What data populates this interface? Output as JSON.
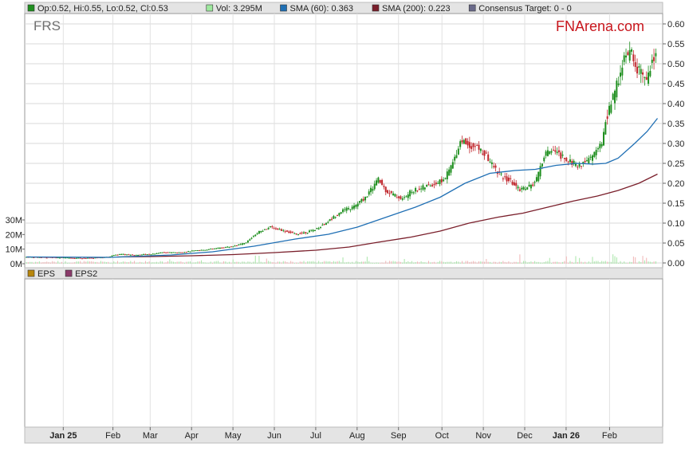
{
  "ticker": "FRS",
  "brand": "FNArena.com",
  "legend_top": [
    {
      "text": "Op:0.52, Hi:0.55, Lo:0.52, Cl:0.53",
      "color": "#1f8f1f"
    },
    {
      "text": "Vol: 3.295M",
      "color": "#9ee89e"
    },
    {
      "text": "SMA (60): 0.363",
      "color": "#1f6fb4"
    },
    {
      "text": "SMA (200): 0.223",
      "color": "#7a1f2b"
    },
    {
      "text": "Consensus Target: 0 - 0",
      "color": "#6a6a8a"
    }
  ],
  "legend_bottom": [
    {
      "text": "EPS",
      "color": "#b8860b"
    },
    {
      "text": "EPS2",
      "color": "#8b3a6a"
    }
  ],
  "chart_data": {
    "type": "line",
    "y_ticks": [
      "0.60",
      "0.55",
      "0.50",
      "0.45",
      "0.40",
      "0.35",
      "0.30",
      "0.25",
      "0.20",
      "0.15",
      "0.10",
      "0.05",
      "0.00"
    ],
    "y_range": [
      0,
      0.6
    ],
    "volume_ticks": [
      "30M",
      "20M",
      "10M",
      "0M"
    ],
    "volume_range": [
      0,
      30
    ],
    "x_labels": [
      {
        "label": "Jan 25",
        "t": 0.7,
        "bold": true
      },
      {
        "label": "Feb",
        "t": 1.9
      },
      {
        "label": "Mar",
        "t": 2.8
      },
      {
        "label": "Apr",
        "t": 3.8
      },
      {
        "label": "May",
        "t": 4.8
      },
      {
        "label": "Jun",
        "t": 5.8
      },
      {
        "label": "Jul",
        "t": 6.8
      },
      {
        "label": "Aug",
        "t": 7.8
      },
      {
        "label": "Sep",
        "t": 8.8
      },
      {
        "label": "Oct",
        "t": 9.85
      },
      {
        "label": "Nov",
        "t": 10.85
      },
      {
        "label": "Dec",
        "t": 11.85
      },
      {
        "label": "Jan 26",
        "t": 12.85,
        "bold": true
      },
      {
        "label": "Feb",
        "t": 13.9
      }
    ],
    "t_range": [
      0,
      14.5
    ],
    "price_series": {
      "name": "Close",
      "points": [
        [
          0,
          0.015
        ],
        [
          0.5,
          0.014
        ],
        [
          1,
          0.013
        ],
        [
          1.5,
          0.012
        ],
        [
          2,
          0.015
        ],
        [
          2.1,
          0.02
        ],
        [
          2.3,
          0.022
        ],
        [
          2.6,
          0.02
        ],
        [
          3,
          0.022
        ],
        [
          3.3,
          0.027
        ],
        [
          3.7,
          0.026
        ],
        [
          4,
          0.03
        ],
        [
          4.3,
          0.033
        ],
        [
          4.7,
          0.038
        ],
        [
          5,
          0.042
        ],
        [
          5.3,
          0.05
        ],
        [
          5.6,
          0.078
        ],
        [
          5.9,
          0.09
        ],
        [
          6.2,
          0.082
        ],
        [
          6.5,
          0.072
        ],
        [
          6.8,
          0.078
        ],
        [
          7,
          0.085
        ],
        [
          7.3,
          0.105
        ],
        [
          7.6,
          0.13
        ],
        [
          7.9,
          0.14
        ],
        [
          8.2,
          0.165
        ],
        [
          8.5,
          0.21
        ],
        [
          8.7,
          0.18
        ],
        [
          8.9,
          0.17
        ],
        [
          9.1,
          0.16
        ],
        [
          9.3,
          0.18
        ],
        [
          9.6,
          0.19
        ],
        [
          9.9,
          0.2
        ],
        [
          10.1,
          0.21
        ],
        [
          10.3,
          0.25
        ],
        [
          10.5,
          0.31
        ],
        [
          10.7,
          0.295
        ],
        [
          10.9,
          0.29
        ],
        [
          11.1,
          0.27
        ],
        [
          11.3,
          0.24
        ],
        [
          11.5,
          0.215
        ],
        [
          11.7,
          0.205
        ],
        [
          11.9,
          0.185
        ],
        [
          12.1,
          0.19
        ],
        [
          12.3,
          0.2
        ],
        [
          12.5,
          0.265
        ],
        [
          12.7,
          0.29
        ],
        [
          12.9,
          0.27
        ],
        [
          13.1,
          0.26
        ],
        [
          13.3,
          0.245
        ],
        [
          13.5,
          0.25
        ],
        [
          13.7,
          0.27
        ],
        [
          13.9,
          0.3
        ],
        [
          14.0,
          0.36
        ],
        [
          14.2,
          0.42
        ],
        [
          14.4,
          0.5
        ],
        [
          14.6,
          0.53
        ],
        [
          14.8,
          0.48
        ],
        [
          15.0,
          0.46
        ],
        [
          15.1,
          0.5
        ],
        [
          15.25,
          0.53
        ]
      ]
    },
    "sma60": {
      "name": "SMA (60)",
      "points": [
        [
          0,
          0.015
        ],
        [
          2,
          0.014
        ],
        [
          2.5,
          0.016
        ],
        [
          3.5,
          0.02
        ],
        [
          4.5,
          0.028
        ],
        [
          5.5,
          0.042
        ],
        [
          6.5,
          0.06
        ],
        [
          7.3,
          0.072
        ],
        [
          8,
          0.09
        ],
        [
          8.7,
          0.115
        ],
        [
          9.4,
          0.14
        ],
        [
          10,
          0.165
        ],
        [
          10.6,
          0.2
        ],
        [
          11.2,
          0.225
        ],
        [
          11.8,
          0.232
        ],
        [
          12.3,
          0.235
        ],
        [
          12.8,
          0.245
        ],
        [
          13.3,
          0.25
        ],
        [
          13.7,
          0.248
        ],
        [
          14.0,
          0.25
        ],
        [
          14.3,
          0.263
        ],
        [
          14.7,
          0.3
        ],
        [
          15.0,
          0.33
        ],
        [
          15.25,
          0.363
        ]
      ]
    },
    "sma200": {
      "name": "SMA (200)",
      "points": [
        [
          2.2,
          0.015
        ],
        [
          3,
          0.016
        ],
        [
          4,
          0.018
        ],
        [
          5,
          0.021
        ],
        [
          6,
          0.026
        ],
        [
          7,
          0.032
        ],
        [
          7.8,
          0.04
        ],
        [
          8.5,
          0.052
        ],
        [
          9.3,
          0.065
        ],
        [
          10,
          0.08
        ],
        [
          10.7,
          0.1
        ],
        [
          11.4,
          0.115
        ],
        [
          12,
          0.125
        ],
        [
          12.6,
          0.14
        ],
        [
          13.2,
          0.155
        ],
        [
          13.8,
          0.168
        ],
        [
          14.3,
          0.182
        ],
        [
          14.8,
          0.2
        ],
        [
          15.25,
          0.223
        ]
      ]
    }
  }
}
